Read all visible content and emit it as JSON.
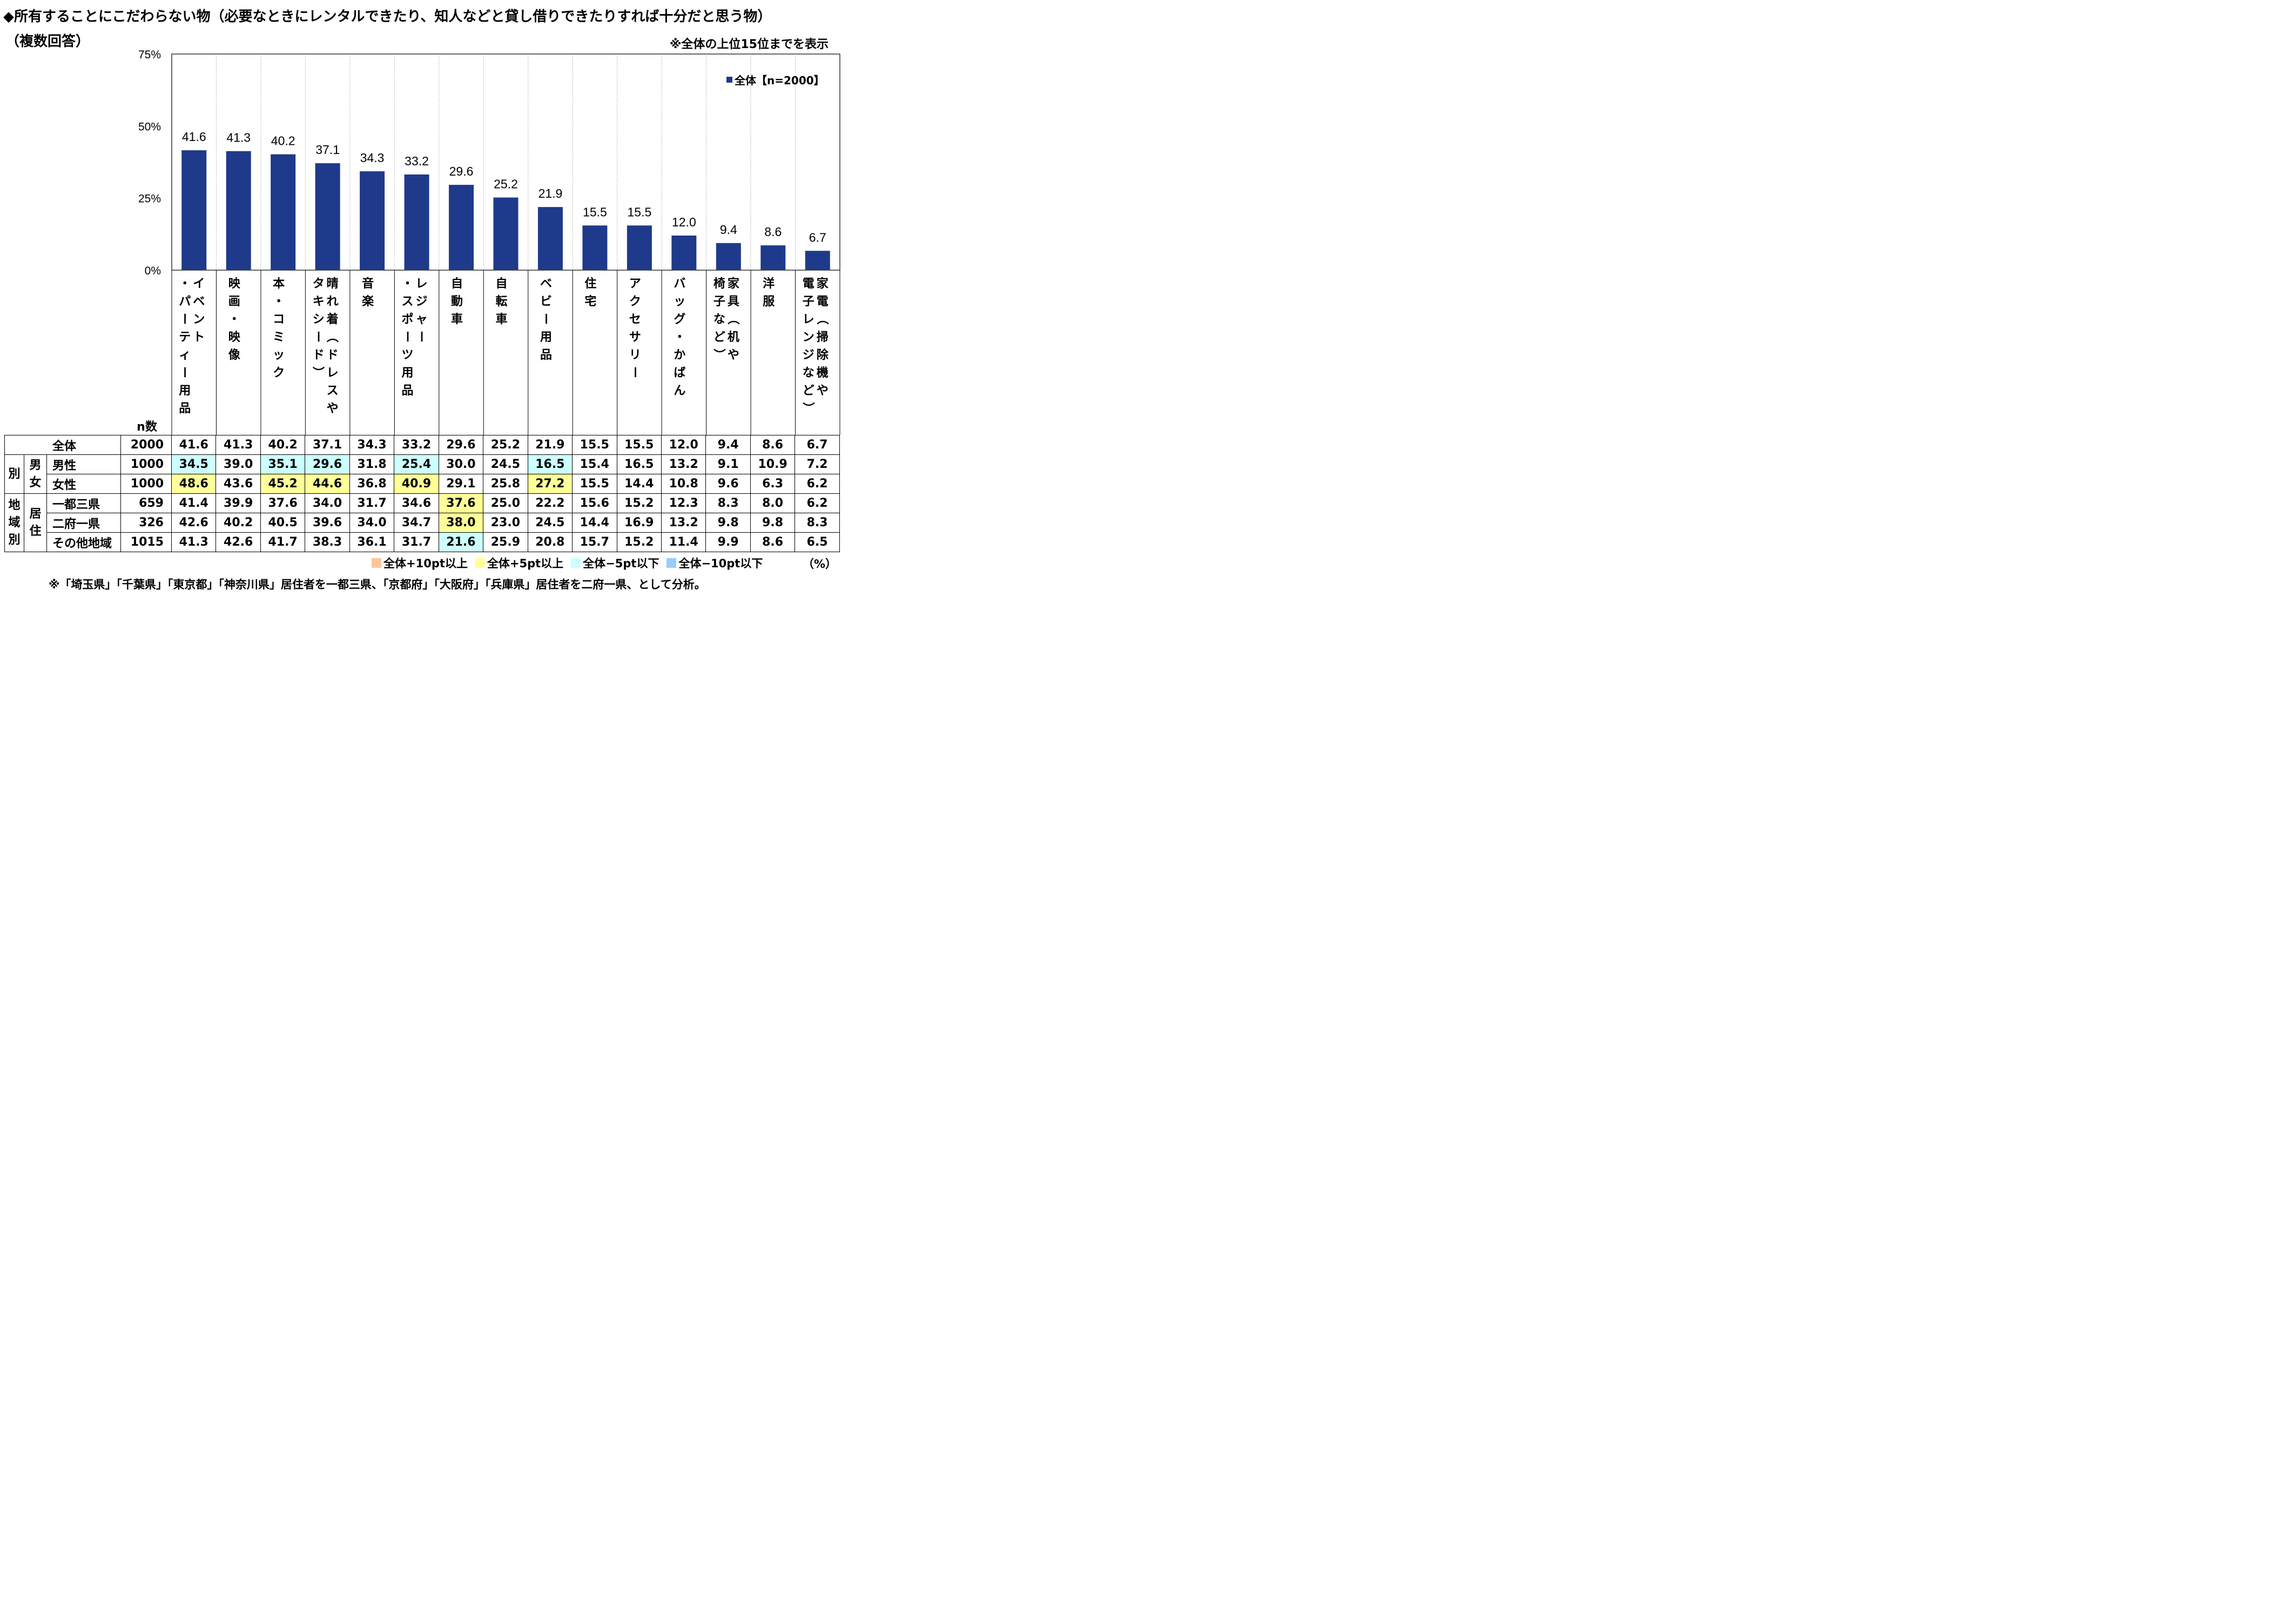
{
  "title": "◆所有することにこだわらない物（必要なときにレンタルできたり、知人などと貸し借りできたりすれば十分だと思う物）",
  "subtitle": "（複数回答）",
  "note_top": "※全体の上位15位までを表示",
  "footnote": "※「埼玉県」「千葉県」「東京都」「神奈川県」居住者を一都三県、「京都府」「大阪府」「兵庫県」居住者を二府一県、として分析。",
  "unit": "（%）",
  "n_header": "n数",
  "highlight_legend": [
    {
      "label": "全体+10pt以上",
      "color": "#fbc79a"
    },
    {
      "label": "全体+5pt以上",
      "color": "#ffff99"
    },
    {
      "label": "全体−5pt以下",
      "color": "#ccffff"
    },
    {
      "label": "全体−10pt以下",
      "color": "#99ccff"
    }
  ],
  "chart_data": {
    "type": "bar",
    "series": [
      {
        "name": "全体【n=2000】",
        "color": "#1f3a8a",
        "values": [
          41.6,
          41.3,
          40.2,
          37.1,
          34.3,
          33.2,
          29.6,
          25.2,
          21.9,
          15.5,
          15.5,
          12.0,
          9.4,
          8.6,
          6.7
        ]
      }
    ],
    "categories": [
      "イベント・パーティー用品",
      "映画・映像",
      "本・コミック",
      "晴れ着（ドレスやタキシード）",
      "音楽",
      "レジャー・スポーツ用品",
      "自動車",
      "自転車",
      "ベビー用品",
      "住宅",
      "アクセサリー",
      "バッグ・かばん",
      "家具（机や椅子など）",
      "洋服",
      "家電（掃除機や電子レンジなど）"
    ],
    "category_lines": [
      [
        "イベント",
        "・パーティー用品"
      ],
      [
        "映画・映像"
      ],
      [
        "本・コミック"
      ],
      [
        "晴れ着（ドレスや",
        "タキシード）"
      ],
      [
        "音楽"
      ],
      [
        "レジャー",
        "・スポーツ用品"
      ],
      [
        "自動車"
      ],
      [
        "自転車"
      ],
      [
        "ベビー用品"
      ],
      [
        "住宅"
      ],
      [
        "アクセサリー"
      ],
      [
        "バッグ・かばん"
      ],
      [
        "家具（机や",
        "椅子など）"
      ],
      [
        "洋服"
      ],
      [
        "家電（掃除機や",
        "電子レンジなど）"
      ]
    ],
    "yticks": [
      "0%",
      "25%",
      "50%",
      "75%"
    ],
    "ylim": [
      0,
      75
    ],
    "grid": "vertical separators",
    "legend": "top-right"
  },
  "table": {
    "rows": [
      {
        "group": "",
        "label": "全体",
        "n": "2000",
        "values": [
          "41.6",
          "41.3",
          "40.2",
          "37.1",
          "34.3",
          "33.2",
          "29.6",
          "25.2",
          "21.9",
          "15.5",
          "15.5",
          "12.0",
          "9.4",
          "8.6",
          "6.7"
        ],
        "highlights": [
          "",
          "",
          "",
          "",
          "",
          "",
          "",
          "",
          "",
          "",
          "",
          "",
          "",
          "",
          ""
        ]
      },
      {
        "group": "男女別",
        "label": "男性",
        "n": "1000",
        "values": [
          "34.5",
          "39.0",
          "35.1",
          "29.6",
          "31.8",
          "25.4",
          "30.0",
          "24.5",
          "16.5",
          "15.4",
          "16.5",
          "13.2",
          "9.1",
          "10.9",
          "7.2"
        ],
        "highlights": [
          "m5",
          "",
          "m5",
          "m5",
          "",
          "m5",
          "",
          "",
          "m5",
          "",
          "",
          "",
          "",
          "",
          ""
        ]
      },
      {
        "group": "男女別",
        "label": "女性",
        "n": "1000",
        "values": [
          "48.6",
          "43.6",
          "45.2",
          "44.6",
          "36.8",
          "40.9",
          "29.1",
          "25.8",
          "27.2",
          "15.5",
          "14.4",
          "10.8",
          "9.6",
          "6.3",
          "6.2"
        ],
        "highlights": [
          "p5",
          "",
          "p5",
          "p5",
          "",
          "p5",
          "",
          "",
          "p5",
          "",
          "",
          "",
          "",
          "",
          ""
        ]
      },
      {
        "group": "居住地域別",
        "label": "一都三県",
        "n": "659",
        "values": [
          "41.4",
          "39.9",
          "37.6",
          "34.0",
          "31.7",
          "34.6",
          "37.6",
          "25.0",
          "22.2",
          "15.6",
          "15.2",
          "12.3",
          "8.3",
          "8.0",
          "6.2"
        ],
        "highlights": [
          "",
          "",
          "",
          "",
          "",
          "",
          "p5",
          "",
          "",
          "",
          "",
          "",
          "",
          "",
          ""
        ]
      },
      {
        "group": "居住地域別",
        "label": "二府一県",
        "n": "326",
        "values": [
          "42.6",
          "40.2",
          "40.5",
          "39.6",
          "34.0",
          "34.7",
          "38.0",
          "23.0",
          "24.5",
          "14.4",
          "16.9",
          "13.2",
          "9.8",
          "9.8",
          "8.3"
        ],
        "highlights": [
          "",
          "",
          "",
          "",
          "",
          "",
          "p5",
          "",
          "",
          "",
          "",
          "",
          "",
          "",
          ""
        ]
      },
      {
        "group": "居住地域別",
        "label": "その他地域",
        "n": "1015",
        "values": [
          "41.3",
          "42.6",
          "41.7",
          "38.3",
          "36.1",
          "31.7",
          "21.6",
          "25.9",
          "20.8",
          "15.7",
          "15.2",
          "11.4",
          "9.9",
          "8.6",
          "6.5"
        ],
        "highlights": [
          "",
          "",
          "",
          "",
          "",
          "",
          "m5",
          "",
          "",
          "",
          "",
          "",
          "",
          "",
          ""
        ]
      }
    ],
    "group_labels": {
      "gender": {
        "outer": "別",
        "inner": "男女"
      },
      "region": {
        "outer": "地域別",
        "inner": "居住"
      }
    }
  }
}
